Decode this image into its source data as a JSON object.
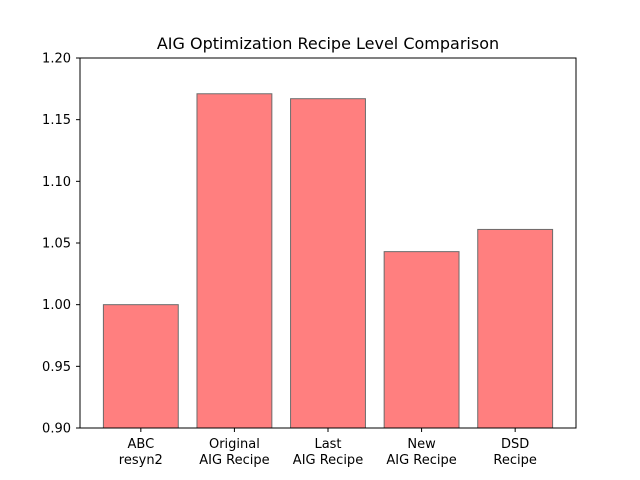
{
  "chart_data": {
    "type": "bar",
    "title": "AIG Optimization Recipe Level Comparison",
    "xlabel": "",
    "ylabel": "",
    "categories": [
      [
        "ABC",
        "resyn2"
      ],
      [
        "Original",
        "AIG Recipe"
      ],
      [
        "Last",
        "AIG Recipe"
      ],
      [
        "New",
        "AIG Recipe"
      ],
      [
        "DSD",
        "Recipe"
      ]
    ],
    "values": [
      1.0,
      1.171,
      1.167,
      1.043,
      1.061
    ],
    "ylim": [
      0.9,
      1.2
    ],
    "yticks": [
      "0.90",
      "0.95",
      "1.00",
      "1.05",
      "1.10",
      "1.15",
      "1.20"
    ],
    "grid": false,
    "legend": "none",
    "colors": {
      "bar_fill": "#ff7f7f",
      "bar_edge": "#6b6b6b",
      "axis": "#000000"
    }
  }
}
